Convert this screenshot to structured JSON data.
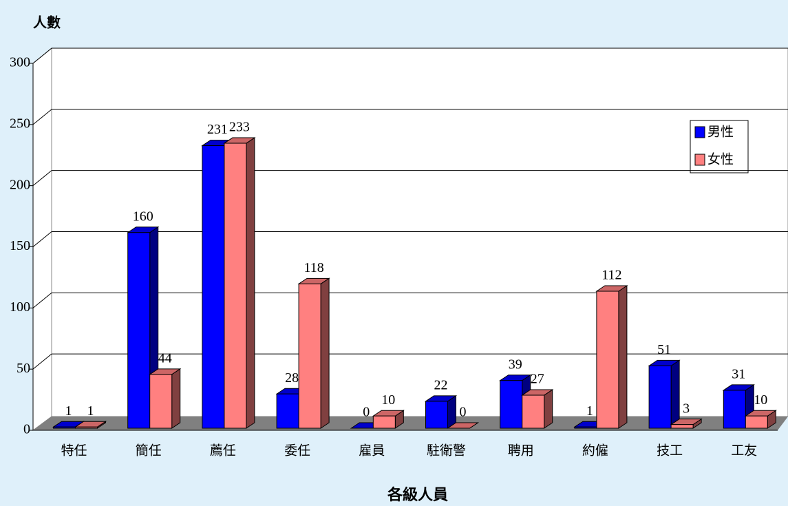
{
  "chart_data": {
    "type": "bar3d",
    "y_axis_label": "人數",
    "x_axis_label": "各級人員",
    "categories": [
      "特任",
      "簡任",
      "薦任",
      "委任",
      "雇員",
      "駐衛警",
      "聘用",
      "約僱",
      "技工",
      "工友"
    ],
    "series": [
      {
        "name": "男性",
        "color": "#0000ff",
        "values": [
          1,
          160,
          231,
          28,
          0,
          22,
          39,
          1,
          51,
          31
        ]
      },
      {
        "name": "女性",
        "color": "#ff8080",
        "values": [
          1,
          44,
          233,
          118,
          10,
          0,
          27,
          112,
          3,
          10
        ]
      }
    ],
    "ylim": [
      0,
      300
    ],
    "yticks": [
      0,
      50,
      100,
      150,
      200,
      250,
      300
    ],
    "grid": true,
    "legend": "right"
  }
}
